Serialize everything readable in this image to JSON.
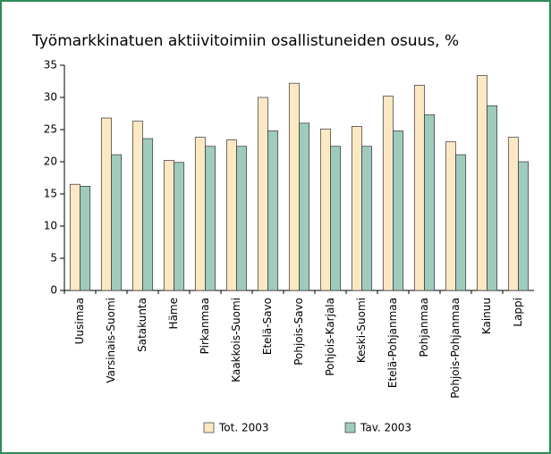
{
  "chart_data": {
    "type": "bar",
    "title": "Työmarkkinatuen aktiivitoimiin osallistuneiden osuus, %",
    "categories": [
      "Uusimaa",
      "Varsinais-Suomi",
      "Satakunta",
      "Häme",
      "Pirkanmaa",
      "Kaakkois-Suomi",
      "Etelä-Savo",
      "Pohjois-Savo",
      "Pohjois-Karjala",
      "Keski-Suomi",
      "Etelä-Pohjanmaa",
      "Pohjanmaa",
      "Pohjois-Pohjanmaa",
      "Kainuu",
      "Lappi"
    ],
    "series": [
      {
        "name": "Tot. 2003",
        "color": "#fde8c4",
        "values": [
          16.5,
          26.8,
          26.3,
          20.2,
          23.8,
          23.4,
          30.0,
          32.2,
          25.1,
          25.5,
          30.2,
          31.9,
          23.1,
          33.4,
          23.8
        ]
      },
      {
        "name": "Tav. 2003",
        "color": "#9fcbbd",
        "values": [
          16.2,
          21.1,
          23.6,
          19.9,
          22.4,
          22.4,
          24.8,
          26.0,
          22.4,
          22.4,
          24.8,
          27.3,
          21.1,
          28.7,
          20.0
        ]
      }
    ],
    "ylim": [
      0,
      35
    ],
    "yticks": [
      0,
      5,
      10,
      15,
      20,
      25,
      30,
      35
    ]
  }
}
